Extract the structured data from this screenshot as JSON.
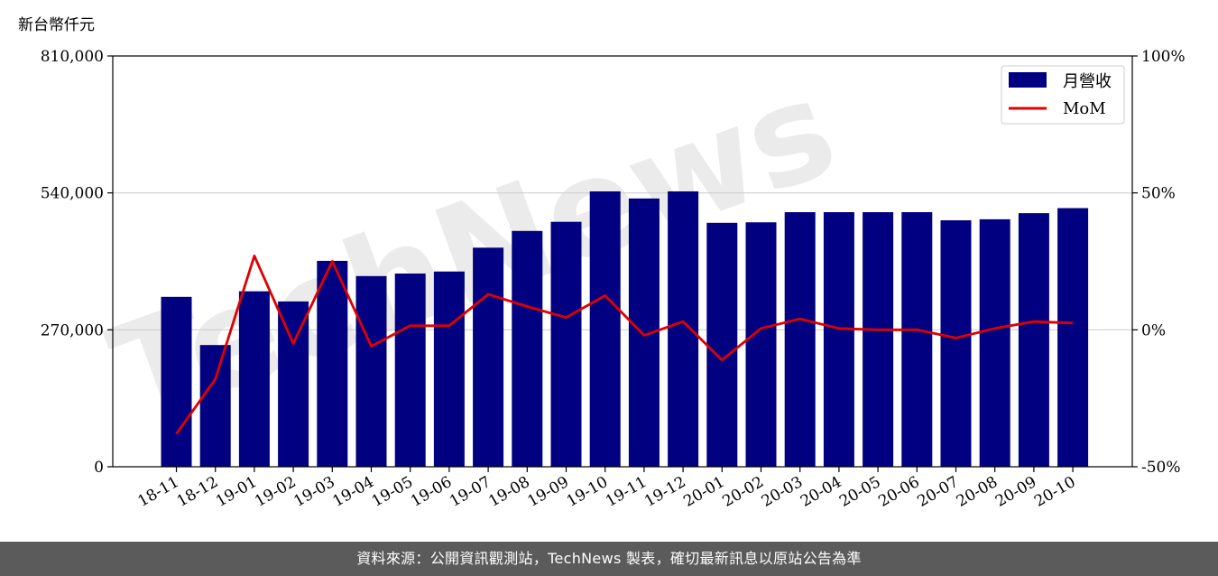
{
  "chart_data": {
    "type": "bar+line",
    "categories": [
      "18-11",
      "18-12",
      "19-01",
      "19-02",
      "19-03",
      "19-04",
      "19-05",
      "19-06",
      "19-07",
      "19-08",
      "19-09",
      "19-10",
      "19-11",
      "19-12",
      "20-01",
      "20-02",
      "20-03",
      "20-04",
      "20-05",
      "20-06",
      "20-07",
      "20-08",
      "20-09",
      "20-10"
    ],
    "series": [
      {
        "name": "月營收",
        "type": "bar",
        "axis": "left",
        "color": "#000080",
        "values": [
          335000,
          240000,
          346000,
          326000,
          406000,
          376000,
          381000,
          385000,
          432000,
          465000,
          483000,
          543000,
          529000,
          543000,
          481000,
          482000,
          502000,
          502000,
          502000,
          502000,
          486000,
          488000,
          500000,
          510000
        ]
      },
      {
        "name": "MoM",
        "type": "line",
        "axis": "right",
        "color": "#e00000",
        "values": [
          -38,
          -18,
          27,
          -5,
          25,
          -6,
          1.5,
          1.5,
          13,
          8.5,
          4.5,
          12.5,
          -2,
          3,
          -11,
          0.5,
          4,
          0.5,
          0,
          0,
          -3,
          0.5,
          3,
          2.5
        ]
      }
    ],
    "ylabel": "新台幣仟元",
    "ylim": [
      0,
      810000
    ],
    "yticks": [
      {
        "value": 0,
        "label": "0"
      },
      {
        "value": 270000,
        "label": "270,000"
      },
      {
        "value": 540000,
        "label": "540,000"
      },
      {
        "value": 810000,
        "label": "810,000"
      }
    ],
    "y2lim": [
      -50,
      100
    ],
    "y2ticks": [
      {
        "value": -50,
        "label": "-50%"
      },
      {
        "value": 0,
        "label": "0%"
      },
      {
        "value": 50,
        "label": "50%"
      },
      {
        "value": 100,
        "label": "100%"
      }
    ],
    "grid": "horizontal",
    "legend_position": "top-right"
  },
  "watermark": "TechNews",
  "footer": "資料來源：公開資訊觀測站，TechNews 製表，確切最新訊息以原站公告為準"
}
